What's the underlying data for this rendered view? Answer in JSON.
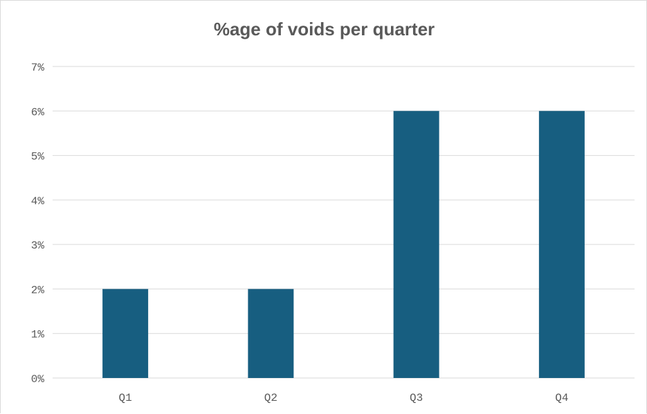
{
  "chart_data": {
    "type": "bar",
    "title": "%age of voids per quarter",
    "xlabel": "",
    "ylabel": "",
    "categories": [
      "Q1",
      "Q2",
      "Q3",
      "Q4"
    ],
    "values": [
      2,
      2,
      6,
      6
    ],
    "y_unit": "%",
    "ylim": [
      0,
      7
    ],
    "y_ticks": [
      "0%",
      "1%",
      "2%",
      "3%",
      "4%",
      "5%",
      "6%",
      "7%"
    ],
    "grid": "horizontal",
    "legend": "none",
    "bar_color": "#175E80",
    "grid_color": "#d9d9d9",
    "axis_label_color": "#595959"
  }
}
